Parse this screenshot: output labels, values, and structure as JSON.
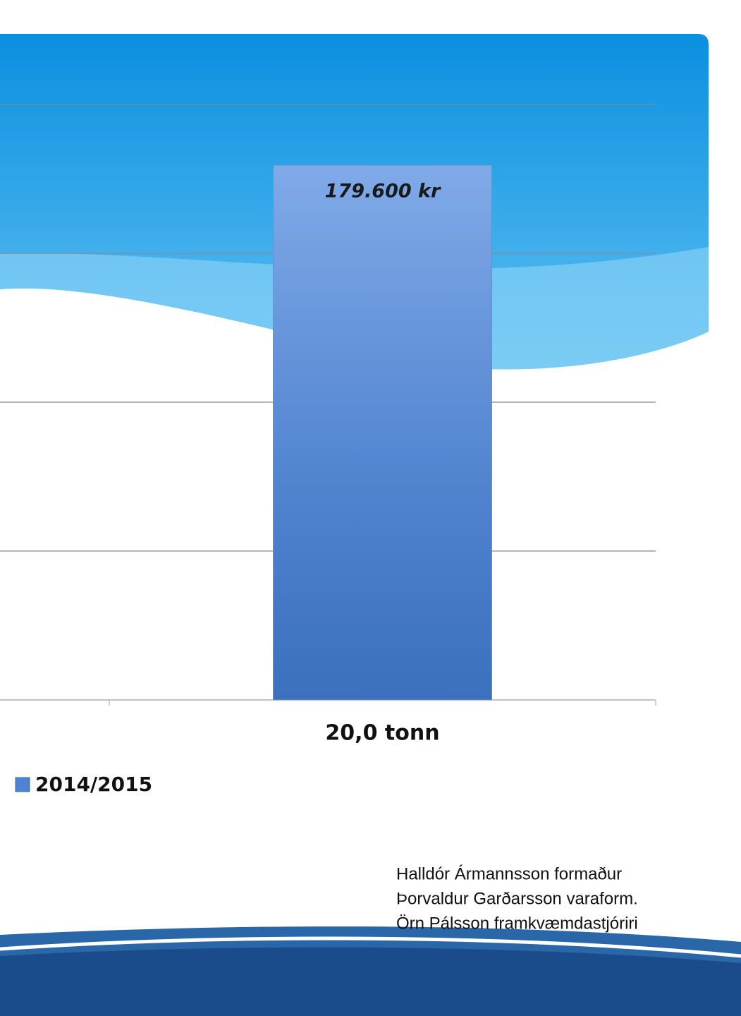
{
  "chart_data": {
    "type": "bar",
    "categories": [
      null,
      "20,0 tonn"
    ],
    "series": [
      {
        "name": "2014/2015",
        "color": "#4f83d1",
        "values": [
          null,
          179600
        ],
        "value_labels": [
          null,
          "179.600 kr"
        ]
      }
    ],
    "ylim": [
      0,
      200000
    ],
    "yticks": [
      0,
      50000,
      100000,
      150000,
      200000
    ],
    "grid": true
  },
  "footer": {
    "lines": [
      "Halldór Ármannsson formaður",
      "Þorvaldur Garðarsson varaform.",
      "Örn Pálsson framkvæmdastjóriri"
    ]
  }
}
